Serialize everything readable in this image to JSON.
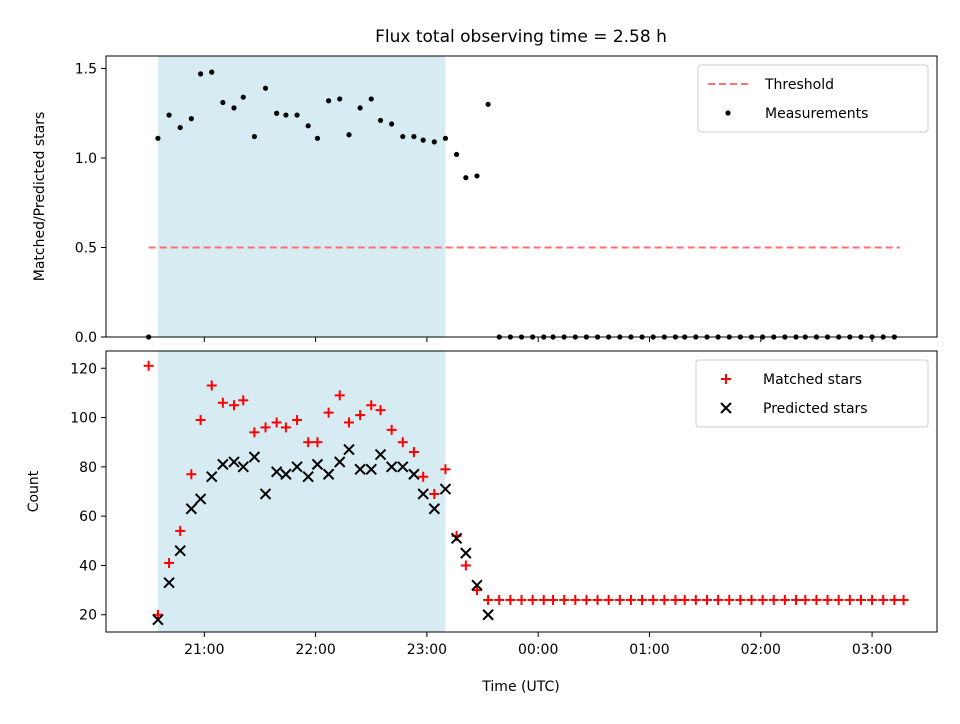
{
  "chart_data": {
    "type": "scatter",
    "title": "Flux total observing time = 2.58 h",
    "xlabel": "Time (UTC)",
    "x_tick_labels": [
      "21:00",
      "22:00",
      "23:00",
      "00:00",
      "01:00",
      "02:00",
      "03:00"
    ],
    "shaded_interval": [
      "20:35",
      "23:10"
    ],
    "colors": {
      "shade": "#add8e6",
      "threshold": "#ff6f6f",
      "matched": "#ff0000",
      "predicted": "#000000",
      "measurement": "#000000"
    },
    "panels": [
      {
        "ylabel": "Matched/Predicted stars",
        "ylim": [
          0,
          1.57
        ],
        "y_ticks": [
          "0.0",
          "0.5",
          "1.0",
          "1.5"
        ],
        "legend": {
          "position": "top-right",
          "entries": [
            "Threshold",
            "Measurements"
          ]
        },
        "series": [
          {
            "name": "Threshold",
            "kind": "line",
            "x": [
              "20:30",
              "03:15"
            ],
            "values": [
              0.5,
              0.5
            ]
          },
          {
            "name": "Measurements",
            "kind": "scatter",
            "x": [
              "20:30",
              "20:35",
              "20:41",
              "20:47",
              "20:53",
              "20:58",
              "21:04",
              "21:10",
              "21:16",
              "21:21",
              "21:27",
              "21:33",
              "21:39",
              "21:44",
              "21:50",
              "21:56",
              "22:01",
              "22:07",
              "22:13",
              "22:18",
              "22:24",
              "22:30",
              "22:35",
              "22:41",
              "22:47",
              "22:53",
              "22:58",
              "23:04",
              "23:10",
              "23:16",
              "23:21",
              "23:27",
              "23:33",
              "23:39",
              "23:45",
              "23:51",
              "23:57",
              "00:03",
              "00:08",
              "00:14",
              "00:20",
              "00:26",
              "00:32",
              "00:38",
              "00:44",
              "00:50",
              "00:56",
              "01:02",
              "01:08",
              "01:14",
              "01:19",
              "01:25",
              "01:31",
              "01:37",
              "01:43",
              "01:49",
              "01:55",
              "02:01",
              "02:07",
              "02:13",
              "02:19",
              "02:24",
              "02:30",
              "02:36",
              "02:42",
              "02:48",
              "02:54",
              "03:00",
              "03:06",
              "03:12"
            ],
            "values": [
              0,
              1.11,
              1.24,
              1.17,
              1.22,
              1.47,
              1.48,
              1.31,
              1.28,
              1.34,
              1.12,
              1.39,
              1.25,
              1.24,
              1.24,
              1.18,
              1.11,
              1.32,
              1.33,
              1.13,
              1.28,
              1.33,
              1.21,
              1.19,
              1.12,
              1.12,
              1.1,
              1.09,
              1.11,
              1.02,
              0.89,
              0.9,
              1.3,
              0,
              0,
              0,
              0,
              0,
              0,
              0,
              0,
              0,
              0,
              0,
              0,
              0,
              0,
              0,
              0,
              0,
              0,
              0,
              0,
              0,
              0,
              0,
              0,
              0,
              0,
              0,
              0,
              0,
              0,
              0,
              0,
              0,
              0,
              0,
              0,
              0
            ]
          }
        ]
      },
      {
        "ylabel": "Count",
        "ylim": [
          13,
          127
        ],
        "y_ticks": [
          "20",
          "40",
          "60",
          "80",
          "100",
          "120"
        ],
        "legend": {
          "position": "top-right",
          "entries": [
            "Matched stars",
            "Predicted stars"
          ]
        },
        "series": [
          {
            "name": "Matched stars",
            "kind": "plus",
            "x": [
              "20:30",
              "20:35",
              "20:41",
              "20:47",
              "20:53",
              "20:58",
              "21:04",
              "21:10",
              "21:16",
              "21:21",
              "21:27",
              "21:33",
              "21:39",
              "21:44",
              "21:50",
              "21:56",
              "22:01",
              "22:07",
              "22:13",
              "22:18",
              "22:24",
              "22:30",
              "22:35",
              "22:41",
              "22:47",
              "22:53",
              "22:58",
              "23:04",
              "23:10",
              "23:16",
              "23:21",
              "23:27",
              "23:33",
              "23:39",
              "23:45",
              "23:51",
              "23:57",
              "00:03",
              "00:08",
              "00:14",
              "00:20",
              "00:26",
              "00:32",
              "00:38",
              "00:44",
              "00:50",
              "00:56",
              "01:02",
              "01:08",
              "01:14",
              "01:19",
              "01:25",
              "01:31",
              "01:37",
              "01:43",
              "01:49",
              "01:55",
              "02:01",
              "02:07",
              "02:13",
              "02:19",
              "02:24",
              "02:30",
              "02:36",
              "02:42",
              "02:48",
              "02:54",
              "03:00",
              "03:06",
              "03:12",
              "03:17"
            ],
            "values": [
              121,
              20,
              41,
              54,
              77,
              99,
              113,
              106,
              105,
              107,
              94,
              96,
              98,
              96,
              99,
              90,
              90,
              102,
              109,
              98,
              101,
              105,
              103,
              95,
              90,
              86,
              76,
              69,
              79,
              52,
              40,
              30,
              26,
              26,
              26,
              26,
              26,
              26,
              26,
              26,
              26,
              26,
              26,
              26,
              26,
              26,
              26,
              26,
              26,
              26,
              26,
              26,
              26,
              26,
              26,
              26,
              26,
              26,
              26,
              26,
              26,
              26,
              26,
              26,
              26,
              26,
              26,
              26,
              26,
              26,
              26
            ]
          },
          {
            "name": "Predicted stars",
            "kind": "x",
            "x": [
              "20:35",
              "20:41",
              "20:47",
              "20:53",
              "20:58",
              "21:04",
              "21:10",
              "21:16",
              "21:21",
              "21:27",
              "21:33",
              "21:39",
              "21:44",
              "21:50",
              "21:56",
              "22:01",
              "22:07",
              "22:13",
              "22:18",
              "22:24",
              "22:30",
              "22:35",
              "22:41",
              "22:47",
              "22:53",
              "22:58",
              "23:04",
              "23:10",
              "23:16",
              "23:21",
              "23:27",
              "23:33"
            ],
            "values": [
              18,
              33,
              46,
              63,
              67,
              76,
              81,
              82,
              80,
              84,
              69,
              78,
              77,
              80,
              76,
              81,
              77,
              82,
              87,
              79,
              79,
              85,
              80,
              80,
              77,
              69,
              63,
              71,
              51,
              45,
              32,
              20
            ]
          }
        ]
      }
    ]
  }
}
